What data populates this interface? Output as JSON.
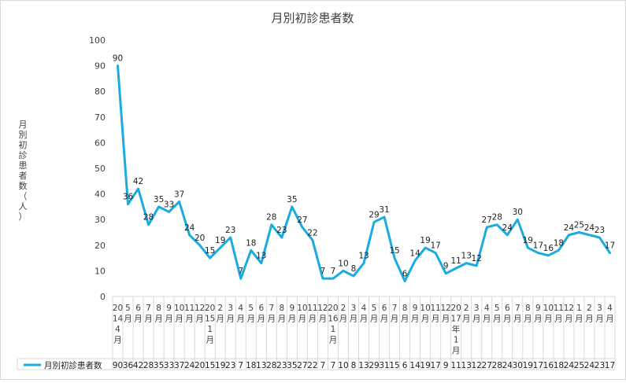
{
  "chart_data": {
    "type": "line",
    "title": "月別初診患者数",
    "ylabel": "月別初診患者数（人）",
    "xlabel": "",
    "ylim": [
      0,
      100
    ],
    "yticks": [
      0,
      10,
      20,
      30,
      40,
      50,
      60,
      70,
      80,
      90,
      100
    ],
    "grid": false,
    "legend": "bottom-table",
    "color": "#1aacdf",
    "categories": [
      [
        "20",
        "14",
        "4",
        "月"
      ],
      [
        "5",
        "月"
      ],
      [
        "6",
        "月"
      ],
      [
        "7",
        "月"
      ],
      [
        "8",
        "月"
      ],
      [
        "9",
        "月"
      ],
      [
        "10",
        "月"
      ],
      [
        "11",
        "月"
      ],
      [
        "12",
        "月"
      ],
      [
        "20",
        "15",
        "1",
        "月"
      ],
      [
        "2",
        "月"
      ],
      [
        "3",
        "月"
      ],
      [
        "4",
        "月"
      ],
      [
        "5",
        "月"
      ],
      [
        "6",
        "月"
      ],
      [
        "7",
        "月"
      ],
      [
        "8",
        "月"
      ],
      [
        "9",
        "月"
      ],
      [
        "10",
        "月"
      ],
      [
        "11",
        "月"
      ],
      [
        "12",
        "月"
      ],
      [
        "20",
        "16",
        "1",
        "月"
      ],
      [
        "2",
        "月"
      ],
      [
        "3",
        "月"
      ],
      [
        "4",
        "月"
      ],
      [
        "5",
        "月"
      ],
      [
        "6",
        "月"
      ],
      [
        "7",
        "月"
      ],
      [
        "8",
        "月"
      ],
      [
        "9",
        "月"
      ],
      [
        "10",
        "月"
      ],
      [
        "11",
        "月"
      ],
      [
        "12",
        "月"
      ],
      [
        "20",
        "17",
        "年",
        "1",
        "月"
      ],
      [
        "2",
        "月"
      ],
      [
        "3",
        "月"
      ],
      [
        "4",
        "月"
      ],
      [
        "5",
        "月"
      ],
      [
        "6",
        "月"
      ],
      [
        "7",
        "月"
      ],
      [
        "8",
        "月"
      ],
      [
        "9",
        "月"
      ],
      [
        "10",
        "月"
      ],
      [
        "11",
        "月"
      ],
      [
        "12",
        "月"
      ],
      [
        "1",
        "月"
      ],
      [
        "2",
        "月"
      ],
      [
        "3",
        "月"
      ],
      [
        "4",
        "月"
      ]
    ],
    "series": [
      {
        "name": "月別初診患者数",
        "values": [
          90,
          36,
          42,
          28,
          35,
          33,
          37,
          24,
          20,
          15,
          19,
          23,
          7,
          18,
          13,
          28,
          23,
          35,
          27,
          22,
          7,
          7,
          10,
          8,
          13,
          29,
          31,
          15,
          6,
          14,
          19,
          17,
          9,
          11,
          13,
          12,
          27,
          28,
          24,
          30,
          19,
          17,
          16,
          18,
          24,
          25,
          24,
          23,
          17
        ]
      }
    ]
  }
}
